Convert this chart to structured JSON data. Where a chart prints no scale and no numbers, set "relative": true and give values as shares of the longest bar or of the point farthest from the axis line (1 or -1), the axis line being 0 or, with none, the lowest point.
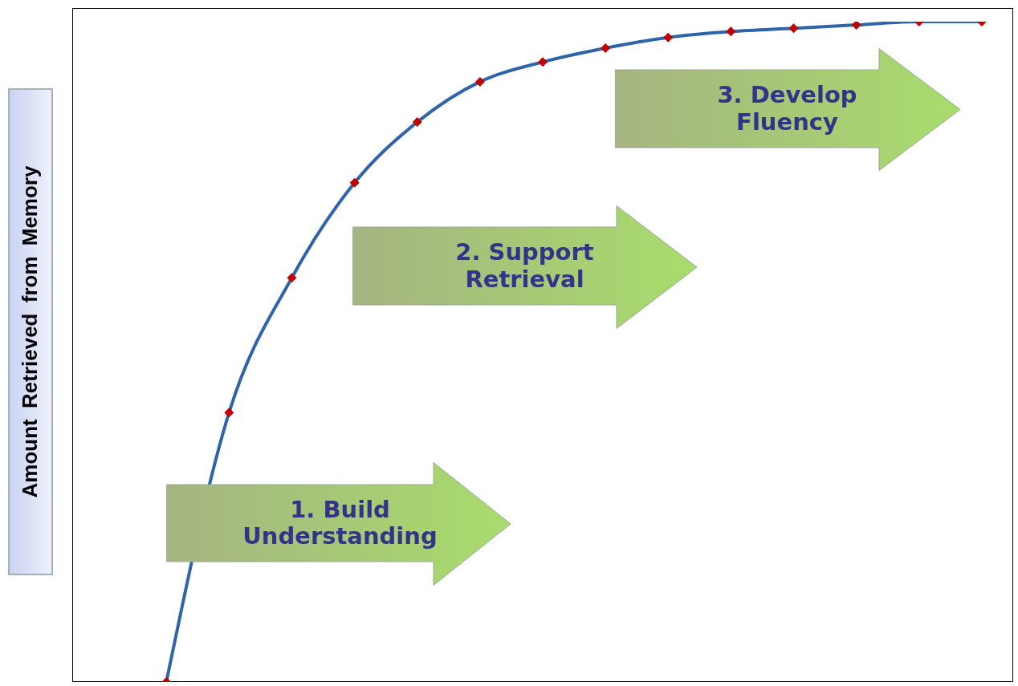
{
  "chart_data": {
    "type": "line",
    "relative": true,
    "ylabel": "Amount Retrieved from Memory",
    "categories": [
      null,
      null,
      null,
      null,
      null,
      null,
      null,
      null,
      null,
      null,
      null,
      null,
      null,
      null
    ],
    "series": [
      {
        "color": "#2f64a8",
        "values": [
          0,
          0.408,
          0.612,
          0.756,
          0.848,
          0.909,
          0.939,
          0.96,
          0.976,
          0.985,
          0.99,
          0.995,
          1,
          1
        ]
      }
    ],
    "marker": "diamond",
    "line_style": "solid",
    "grid": false,
    "legend": false,
    "annotations": [
      "1. Build Understanding",
      "2. Support Retrieval",
      "3. Develop Fluency"
    ]
  }
}
